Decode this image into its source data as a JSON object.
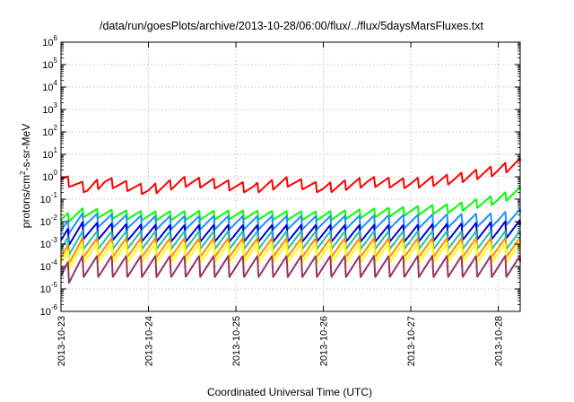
{
  "chart_data": {
    "type": "line",
    "title": "/data/run/goesPlots/archive/2013-10-28/06:00/flux/../flux/5daysMarsFluxes.txt",
    "xlabel": "Coordinated Universal Time (UTC)",
    "ylabel_parts": [
      "protons/cm",
      "2",
      "-s-sr-MeV"
    ],
    "yscale": "log",
    "ylim": [
      1e-06,
      1000000.0
    ],
    "y_ticks": [
      {
        "base": "10",
        "exp": "-6",
        "value": 1e-06
      },
      {
        "base": "10",
        "exp": "-5",
        "value": 1e-05
      },
      {
        "base": "10",
        "exp": "-4",
        "value": 0.0001
      },
      {
        "base": "10",
        "exp": "-3",
        "value": 0.001
      },
      {
        "base": "10",
        "exp": "-2",
        "value": 0.01
      },
      {
        "base": "10",
        "exp": "-1",
        "value": 0.1
      },
      {
        "base": "10",
        "exp": "0",
        "value": 1
      },
      {
        "base": "10",
        "exp": "1",
        "value": 10
      },
      {
        "base": "10",
        "exp": "2",
        "value": 100
      },
      {
        "base": "10",
        "exp": "3",
        "value": 1000
      },
      {
        "base": "10",
        "exp": "4",
        "value": 10000
      },
      {
        "base": "10",
        "exp": "5",
        "value": 100000
      },
      {
        "base": "10",
        "exp": "6",
        "value": 1000000
      }
    ],
    "xlim": [
      "2013-10-23 00:00",
      "2013-10-28 06:00"
    ],
    "x_ticks": [
      "2013-10-23",
      "2013-10-24",
      "2013-10-25",
      "2013-10-26",
      "2013-10-27",
      "2013-10-28"
    ],
    "grid": true,
    "legend": "none",
    "series": [
      {
        "color": "#ff0000",
        "anchors": [
          [
            0,
            0.8
          ],
          [
            0.3,
            0.3
          ],
          [
            0.5,
            0.6
          ],
          [
            1,
            0.25
          ],
          [
            1.4,
            0.6
          ],
          [
            1.75,
            0.5
          ],
          [
            2.2,
            0.3
          ],
          [
            2.6,
            0.6
          ],
          [
            3,
            0.3
          ],
          [
            3.5,
            0.6
          ],
          [
            4,
            0.5
          ],
          [
            4.5,
            0.8
          ],
          [
            5,
            2.0
          ],
          [
            5.25,
            4.0
          ]
        ]
      },
      {
        "color": "#00ff00",
        "anchors": [
          [
            0,
            0.012
          ],
          [
            0.25,
            0.025
          ],
          [
            1,
            0.018
          ],
          [
            2,
            0.02
          ],
          [
            3,
            0.018
          ],
          [
            4,
            0.03
          ],
          [
            4.5,
            0.04
          ],
          [
            5,
            0.1
          ],
          [
            5.25,
            0.22
          ]
        ]
      },
      {
        "color": "#1e90ff",
        "anchors": [
          [
            0,
            0.004
          ],
          [
            0.25,
            0.012
          ],
          [
            1,
            0.009
          ],
          [
            2,
            0.009
          ],
          [
            3,
            0.009
          ],
          [
            4,
            0.01
          ],
          [
            5,
            0.012
          ],
          [
            5.25,
            0.018
          ]
        ]
      },
      {
        "color": "#0000dd",
        "anchors": [
          [
            0,
            0.0015
          ],
          [
            0.25,
            0.004
          ],
          [
            1,
            0.003
          ],
          [
            2,
            0.003
          ],
          [
            3,
            0.003
          ],
          [
            4,
            0.003
          ],
          [
            5,
            0.004
          ],
          [
            5.25,
            0.005
          ]
        ]
      },
      {
        "color": "#20c0a8",
        "anchors": [
          [
            0,
            0.0006
          ],
          [
            0.25,
            0.0015
          ],
          [
            5.25,
            0.0015
          ]
        ]
      },
      {
        "color": "#ff8c00",
        "anchors": [
          [
            0,
            0.00025
          ],
          [
            0.25,
            0.0007
          ],
          [
            5.25,
            0.0007
          ]
        ]
      },
      {
        "color": "#ffff00",
        "anchors": [
          [
            0,
            0.00015
          ],
          [
            0.25,
            0.0004
          ],
          [
            5.25,
            0.0004
          ]
        ]
      },
      {
        "color": "#993366",
        "anchors": [
          [
            0,
            4e-05
          ],
          [
            0.25,
            0.0001
          ],
          [
            5.25,
            0.0001
          ]
        ]
      }
    ]
  }
}
